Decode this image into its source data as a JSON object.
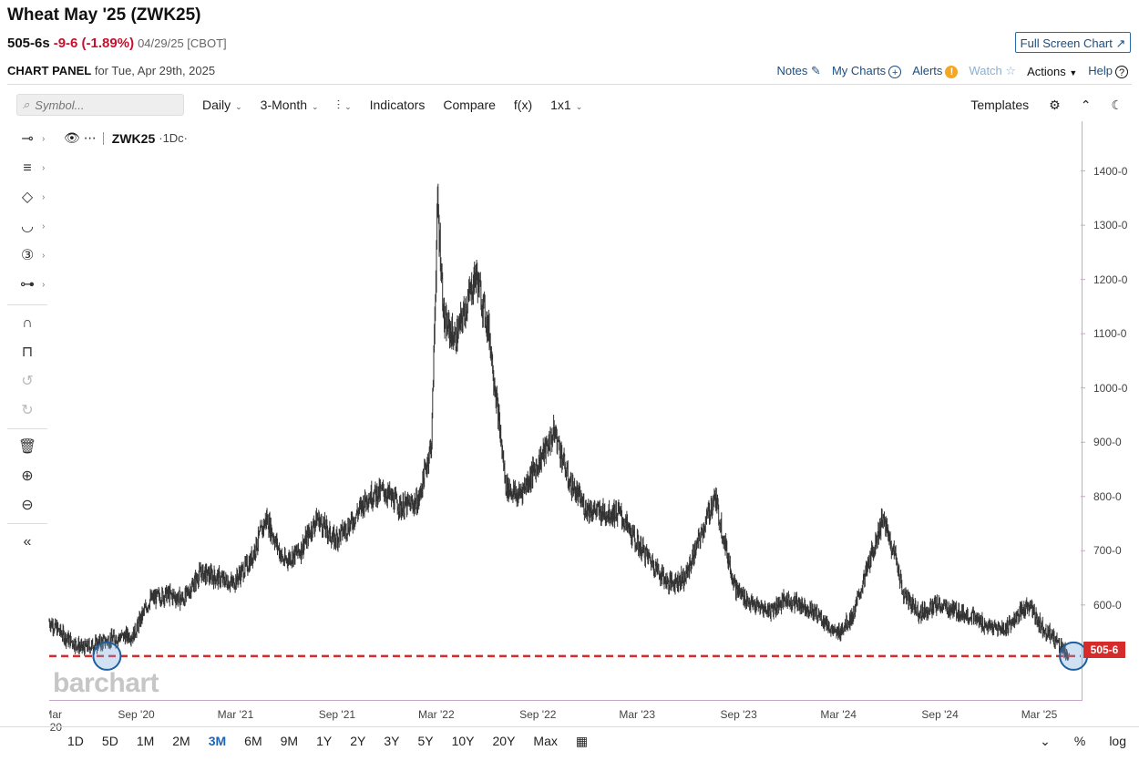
{
  "header": {
    "title": "Wheat May '25 (ZWK25)",
    "last": "505-6s",
    "change": "-9-6 (-1.89%)",
    "meta": "04/29/25 [CBOT]",
    "full_screen": "Full Screen Chart",
    "panel_label": "CHART PANEL",
    "panel_date": "for Tue, Apr 29th, 2025",
    "links": {
      "notes": "Notes",
      "my_charts": "My Charts",
      "alerts": "Alerts",
      "watch": "Watch",
      "actions": "Actions",
      "help": "Help"
    }
  },
  "toolbar": {
    "symbol_placeholder": "Symbol...",
    "period": "Daily",
    "range": "3-Month",
    "indicators": "Indicators",
    "compare": "Compare",
    "fx": "f(x)",
    "layout": "1x1",
    "templates": "Templates"
  },
  "legend": {
    "symbol": "ZWK25",
    "interval": "·1Dc·"
  },
  "watermark": "barchart",
  "last_price_label": "505-6",
  "bottom": {
    "ranges": [
      "1D",
      "5D",
      "1M",
      "2M",
      "3M",
      "6M",
      "9M",
      "1Y",
      "2Y",
      "3Y",
      "5Y",
      "10Y",
      "20Y",
      "Max"
    ],
    "active_range": "3M",
    "percent": "%",
    "log": "log"
  },
  "colors": {
    "candle": "#333333",
    "last_line": "#d52b2b",
    "accent": "#1b66b7",
    "highlight_circle": "#1f5f9e"
  },
  "chart_data": {
    "type": "line",
    "title": "Wheat May '25 (ZWK25)",
    "xlabel": "",
    "ylabel": "",
    "x_tick_labels": [
      "Mar '20",
      "Sep '20",
      "Mar '21",
      "Sep '21",
      "Mar '22",
      "Sep '22",
      "Mar '23",
      "Sep '23",
      "Mar '24",
      "Sep '24",
      "Mar '25"
    ],
    "y_tick_labels": [
      "600-0",
      "700-0",
      "800-0",
      "900-0",
      "1000-0",
      "1100-0",
      "1200-0",
      "1300-0",
      "1400-0"
    ],
    "ylim": [
      425,
      1490
    ],
    "xlim": [
      "2020-04-01",
      "2025-05-20"
    ],
    "grid": false,
    "last_price": 505.75,
    "series": [
      {
        "x": [
          "2020-04-01",
          "2020-05-01",
          "2020-06-01",
          "2020-07-01",
          "2020-08-01",
          "2020-09-01",
          "2020-10-01",
          "2020-11-01",
          "2020-12-01",
          "2021-01-01",
          "2021-02-01",
          "2021-03-01",
          "2021-04-01",
          "2021-05-01",
          "2021-06-01",
          "2021-07-01",
          "2021-08-01",
          "2021-09-01",
          "2021-10-01",
          "2021-11-01",
          "2021-12-01",
          "2022-01-01",
          "2022-02-01",
          "2022-02-25",
          "2022-03-08",
          "2022-03-20",
          "2022-04-10",
          "2022-05-17",
          "2022-06-10",
          "2022-07-10",
          "2022-08-01",
          "2022-09-01",
          "2022-10-07",
          "2022-11-01",
          "2022-12-01",
          "2023-01-01",
          "2023-02-01",
          "2023-03-01",
          "2023-04-01",
          "2023-05-01",
          "2023-06-01",
          "2023-07-25",
          "2023-08-15",
          "2023-09-01",
          "2023-10-01",
          "2023-11-01",
          "2023-12-01",
          "2024-01-01",
          "2024-02-01",
          "2024-03-01",
          "2024-04-01",
          "2024-05-25",
          "2024-06-20",
          "2024-07-01",
          "2024-08-01",
          "2024-09-01",
          "2024-10-01",
          "2024-11-01",
          "2024-12-01",
          "2025-01-01",
          "2025-02-15",
          "2025-03-10",
          "2025-04-01",
          "2025-04-29"
        ],
        "values": [
          570,
          540,
          520,
          530,
          540,
          545,
          610,
          620,
          610,
          660,
          650,
          640,
          680,
          760,
          680,
          700,
          760,
          720,
          750,
          800,
          810,
          780,
          790,
          900,
          1340,
          1120,
          1090,
          1210,
          1100,
          820,
          800,
          850,
          920,
          830,
          780,
          770,
          770,
          720,
          680,
          640,
          650,
          800,
          700,
          630,
          600,
          590,
          610,
          600,
          580,
          545,
          580,
          760,
          680,
          620,
          585,
          600,
          590,
          580,
          560,
          555,
          600,
          560,
          540,
          505.75
        ]
      }
    ]
  }
}
